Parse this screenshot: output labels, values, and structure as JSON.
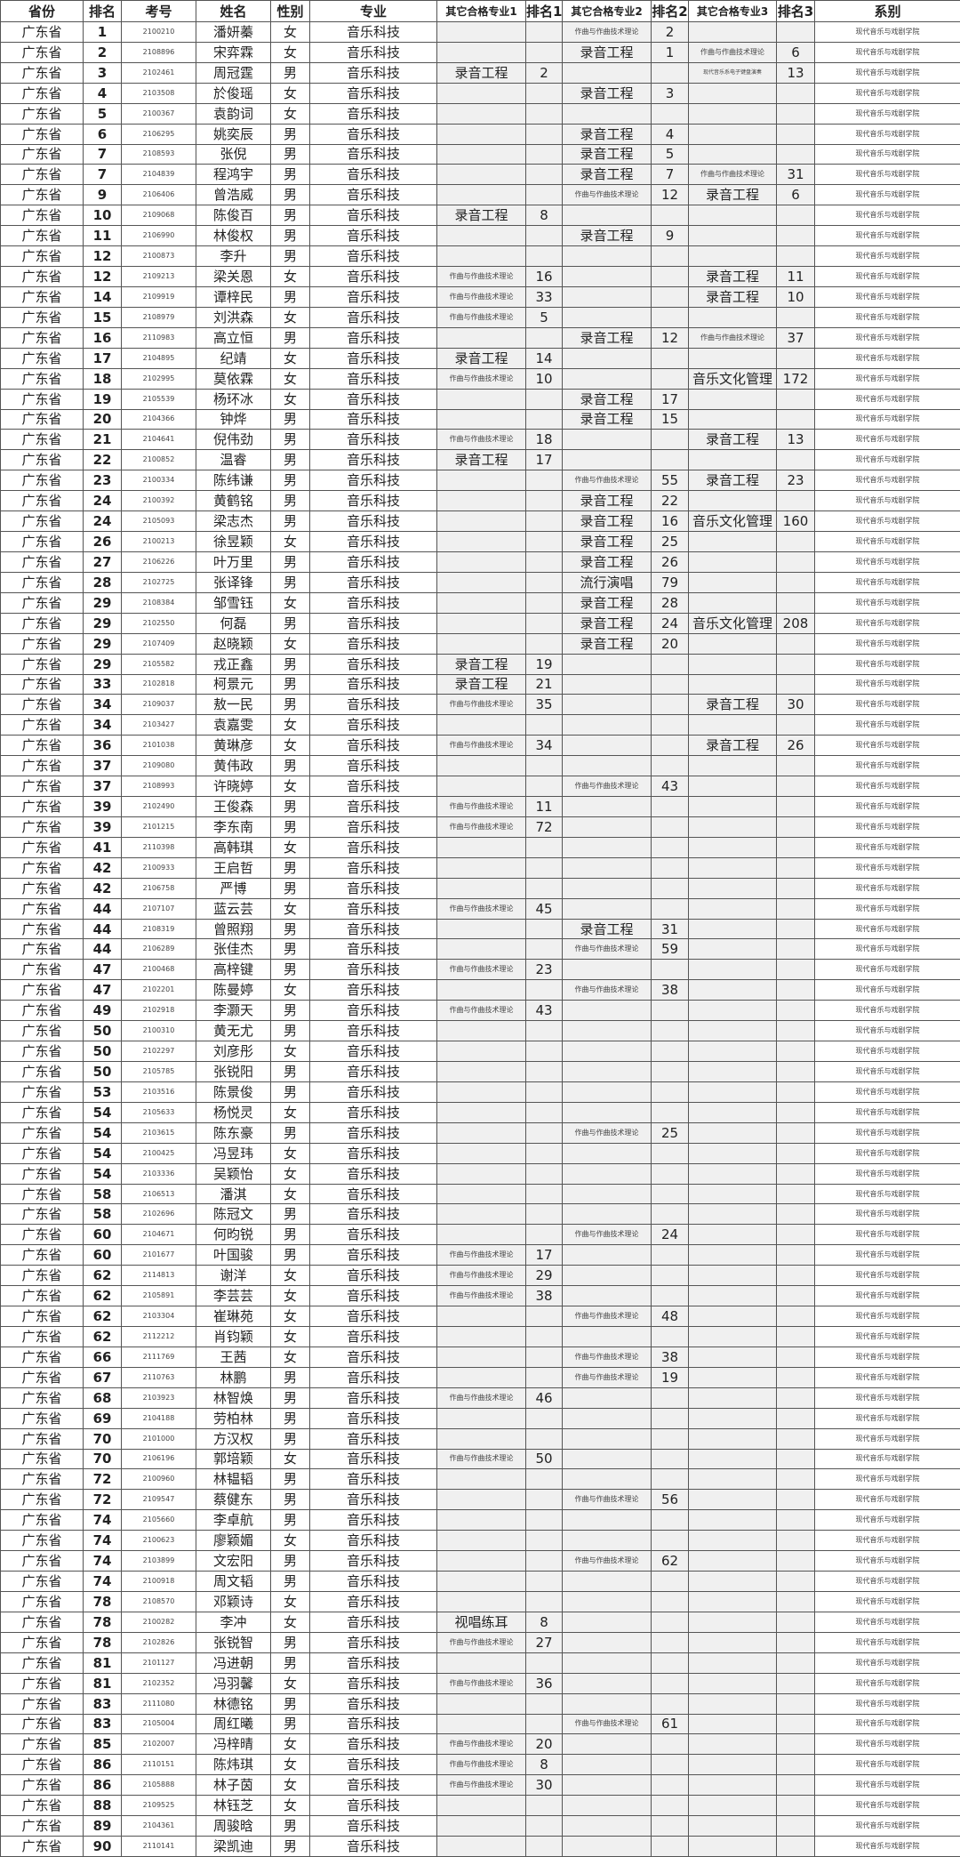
{
  "headers": [
    "省份",
    "排名",
    "考号",
    "姓名",
    "性别",
    "专业",
    "其它合格专业1",
    "排名1",
    "其它合格专业2",
    "排名2",
    "其它合格专业3",
    "排名3",
    "系别"
  ],
  "province": "广东省",
  "major": "音乐科技",
  "dept": "现代音乐与戏剧学院",
  "rows": [
    [
      "1",
      "2100210",
      "潘妍蓁",
      "女",
      "",
      "",
      "作曲与作曲技术理论",
      "2",
      "",
      ""
    ],
    [
      "2",
      "2108896",
      "宋弈霖",
      "女",
      "",
      "",
      "录音工程",
      "1",
      "作曲与作曲技术理论",
      "6"
    ],
    [
      "3",
      "2102461",
      "周冠霆",
      "男",
      "录音工程",
      "2",
      "",
      "",
      "现代音乐系电子键盘演奏",
      "13"
    ],
    [
      "4",
      "2103508",
      "於俊瑶",
      "女",
      "",
      "",
      "录音工程",
      "3",
      "",
      ""
    ],
    [
      "5",
      "2100367",
      "袁韵词",
      "女",
      "",
      "",
      "",
      "",
      "",
      ""
    ],
    [
      "6",
      "2106295",
      "姚奕辰",
      "男",
      "",
      "",
      "录音工程",
      "4",
      "",
      ""
    ],
    [
      "7",
      "2108593",
      "张倪",
      "男",
      "",
      "",
      "录音工程",
      "5",
      "",
      ""
    ],
    [
      "7",
      "2104839",
      "程鸿宇",
      "男",
      "",
      "",
      "录音工程",
      "7",
      "作曲与作曲技术理论",
      "31"
    ],
    [
      "9",
      "2106406",
      "曾浩威",
      "男",
      "",
      "",
      "作曲与作曲技术理论",
      "12",
      "录音工程",
      "6"
    ],
    [
      "10",
      "2109068",
      "陈俊百",
      "男",
      "录音工程",
      "8",
      "",
      "",
      "",
      ""
    ],
    [
      "11",
      "2106990",
      "林俊权",
      "男",
      "",
      "",
      "录音工程",
      "9",
      "",
      ""
    ],
    [
      "12",
      "2100873",
      "李升",
      "男",
      "",
      "",
      "",
      "",
      "",
      ""
    ],
    [
      "12",
      "2109213",
      "梁关恩",
      "女",
      "作曲与作曲技术理论",
      "16",
      "",
      "",
      "录音工程",
      "11"
    ],
    [
      "14",
      "2109919",
      "谭梓民",
      "男",
      "作曲与作曲技术理论",
      "33",
      "",
      "",
      "录音工程",
      "10"
    ],
    [
      "15",
      "2108979",
      "刘洪森",
      "女",
      "作曲与作曲技术理论",
      "5",
      "",
      "",
      "",
      ""
    ],
    [
      "16",
      "2110983",
      "高立恒",
      "男",
      "",
      "",
      "录音工程",
      "12",
      "作曲与作曲技术理论",
      "37"
    ],
    [
      "17",
      "2104895",
      "纪靖",
      "女",
      "录音工程",
      "14",
      "",
      "",
      "",
      ""
    ],
    [
      "18",
      "2102995",
      "莫依霖",
      "女",
      "作曲与作曲技术理论",
      "10",
      "",
      "",
      "音乐文化管理",
      "172"
    ],
    [
      "19",
      "2105539",
      "杨环冰",
      "女",
      "",
      "",
      "录音工程",
      "17",
      "",
      ""
    ],
    [
      "20",
      "2104366",
      "钟烨",
      "男",
      "",
      "",
      "录音工程",
      "15",
      "",
      ""
    ],
    [
      "21",
      "2104641",
      "倪伟劲",
      "男",
      "作曲与作曲技术理论",
      "18",
      "",
      "",
      "录音工程",
      "13"
    ],
    [
      "22",
      "2100852",
      "温睿",
      "男",
      "录音工程",
      "17",
      "",
      "",
      "",
      ""
    ],
    [
      "23",
      "2100334",
      "陈纬谦",
      "男",
      "",
      "",
      "作曲与作曲技术理论",
      "55",
      "录音工程",
      "23"
    ],
    [
      "24",
      "2100392",
      "黄鹤铭",
      "男",
      "",
      "",
      "录音工程",
      "22",
      "",
      ""
    ],
    [
      "24",
      "2105093",
      "梁志杰",
      "男",
      "",
      "",
      "录音工程",
      "16",
      "音乐文化管理",
      "160"
    ],
    [
      "26",
      "2100213",
      "徐昱颖",
      "女",
      "",
      "",
      "录音工程",
      "25",
      "",
      ""
    ],
    [
      "27",
      "2106226",
      "叶万里",
      "男",
      "",
      "",
      "录音工程",
      "26",
      "",
      ""
    ],
    [
      "28",
      "2102725",
      "张译锋",
      "男",
      "",
      "",
      "流行演唱",
      "79",
      "",
      ""
    ],
    [
      "29",
      "2108384",
      "邹雪钰",
      "女",
      "",
      "",
      "录音工程",
      "28",
      "",
      ""
    ],
    [
      "29",
      "2102550",
      "何磊",
      "男",
      "",
      "",
      "录音工程",
      "24",
      "音乐文化管理",
      "208"
    ],
    [
      "29",
      "2107409",
      "赵晓颖",
      "女",
      "",
      "",
      "录音工程",
      "20",
      "",
      ""
    ],
    [
      "29",
      "2105582",
      "戎正鑫",
      "男",
      "录音工程",
      "19",
      "",
      "",
      "",
      ""
    ],
    [
      "33",
      "2102818",
      "柯景元",
      "男",
      "录音工程",
      "21",
      "",
      "",
      "",
      ""
    ],
    [
      "34",
      "2109037",
      "敖一民",
      "男",
      "作曲与作曲技术理论",
      "35",
      "",
      "",
      "录音工程",
      "30"
    ],
    [
      "34",
      "2103427",
      "袁嘉雯",
      "女",
      "",
      "",
      "",
      "",
      "",
      ""
    ],
    [
      "36",
      "2101038",
      "黄琳彦",
      "女",
      "作曲与作曲技术理论",
      "34",
      "",
      "",
      "录音工程",
      "26"
    ],
    [
      "37",
      "2109080",
      "黄伟政",
      "男",
      "",
      "",
      "",
      "",
      "",
      ""
    ],
    [
      "37",
      "2108993",
      "许晓婷",
      "女",
      "",
      "",
      "作曲与作曲技术理论",
      "43",
      "",
      ""
    ],
    [
      "39",
      "2102490",
      "王俊森",
      "男",
      "作曲与作曲技术理论",
      "11",
      "",
      "",
      "",
      ""
    ],
    [
      "39",
      "2101215",
      "李东南",
      "男",
      "作曲与作曲技术理论",
      "72",
      "",
      "",
      "",
      ""
    ],
    [
      "41",
      "2110398",
      "高韩琪",
      "女",
      "",
      "",
      "",
      "",
      "",
      ""
    ],
    [
      "42",
      "2100933",
      "王启哲",
      "男",
      "",
      "",
      "",
      "",
      "",
      ""
    ],
    [
      "42",
      "2106758",
      "严博",
      "男",
      "",
      "",
      "",
      "",
      "",
      ""
    ],
    [
      "44",
      "2107107",
      "蓝云芸",
      "女",
      "作曲与作曲技术理论",
      "45",
      "",
      "",
      "",
      ""
    ],
    [
      "44",
      "2108319",
      "曾照翔",
      "男",
      "",
      "",
      "录音工程",
      "31",
      "",
      ""
    ],
    [
      "44",
      "2106289",
      "张佳杰",
      "男",
      "",
      "",
      "作曲与作曲技术理论",
      "59",
      "",
      ""
    ],
    [
      "47",
      "2100468",
      "高梓键",
      "男",
      "作曲与作曲技术理论",
      "23",
      "",
      "",
      "",
      ""
    ],
    [
      "47",
      "2102201",
      "陈曼婷",
      "女",
      "",
      "",
      "作曲与作曲技术理论",
      "38",
      "",
      ""
    ],
    [
      "49",
      "2102918",
      "李灏天",
      "男",
      "作曲与作曲技术理论",
      "43",
      "",
      "",
      "",
      ""
    ],
    [
      "50",
      "2100310",
      "黄无尤",
      "男",
      "",
      "",
      "",
      "",
      "",
      ""
    ],
    [
      "50",
      "2102297",
      "刘彦彤",
      "女",
      "",
      "",
      "",
      "",
      "",
      ""
    ],
    [
      "50",
      "2105785",
      "张锐阳",
      "男",
      "",
      "",
      "",
      "",
      "",
      ""
    ],
    [
      "53",
      "2103516",
      "陈景俊",
      "男",
      "",
      "",
      "",
      "",
      "",
      ""
    ],
    [
      "54",
      "2105633",
      "杨悦灵",
      "女",
      "",
      "",
      "",
      "",
      "",
      ""
    ],
    [
      "54",
      "2103615",
      "陈东豪",
      "男",
      "",
      "",
      "作曲与作曲技术理论",
      "25",
      "",
      ""
    ],
    [
      "54",
      "2100425",
      "冯昱玮",
      "女",
      "",
      "",
      "",
      "",
      "",
      ""
    ],
    [
      "54",
      "2103336",
      "吴颖怡",
      "女",
      "",
      "",
      "",
      "",
      "",
      ""
    ],
    [
      "58",
      "2106513",
      "潘淇",
      "女",
      "",
      "",
      "",
      "",
      "",
      ""
    ],
    [
      "58",
      "2102696",
      "陈冠文",
      "男",
      "",
      "",
      "",
      "",
      "",
      ""
    ],
    [
      "60",
      "2104671",
      "何昀锐",
      "男",
      "",
      "",
      "作曲与作曲技术理论",
      "24",
      "",
      ""
    ],
    [
      "60",
      "2101677",
      "叶国骏",
      "男",
      "作曲与作曲技术理论",
      "17",
      "",
      "",
      "",
      ""
    ],
    [
      "62",
      "2114813",
      "谢洋",
      "女",
      "作曲与作曲技术理论",
      "29",
      "",
      "",
      "",
      ""
    ],
    [
      "62",
      "2105891",
      "李芸芸",
      "女",
      "作曲与作曲技术理论",
      "38",
      "",
      "",
      "",
      ""
    ],
    [
      "62",
      "2103304",
      "崔琳苑",
      "女",
      "",
      "",
      "作曲与作曲技术理论",
      "48",
      "",
      ""
    ],
    [
      "62",
      "2112212",
      "肖钧颖",
      "女",
      "",
      "",
      "",
      "",
      "",
      ""
    ],
    [
      "66",
      "2111769",
      "王茜",
      "女",
      "",
      "",
      "作曲与作曲技术理论",
      "38",
      "",
      ""
    ],
    [
      "67",
      "2110763",
      "林鹏",
      "男",
      "",
      "",
      "作曲与作曲技术理论",
      "19",
      "",
      ""
    ],
    [
      "68",
      "2103923",
      "林智焕",
      "男",
      "作曲与作曲技术理论",
      "46",
      "",
      "",
      "",
      ""
    ],
    [
      "69",
      "2104188",
      "劳柏林",
      "男",
      "",
      "",
      "",
      "",
      "",
      ""
    ],
    [
      "70",
      "2101000",
      "方汉权",
      "男",
      "",
      "",
      "",
      "",
      "",
      ""
    ],
    [
      "70",
      "2106196",
      "郭培颖",
      "女",
      "作曲与作曲技术理论",
      "50",
      "",
      "",
      "",
      ""
    ],
    [
      "72",
      "2100960",
      "林韫韬",
      "男",
      "",
      "",
      "",
      "",
      "",
      ""
    ],
    [
      "72",
      "2109547",
      "蔡健东",
      "男",
      "",
      "",
      "作曲与作曲技术理论",
      "56",
      "",
      ""
    ],
    [
      "74",
      "2105660",
      "李卓航",
      "男",
      "",
      "",
      "",
      "",
      "",
      ""
    ],
    [
      "74",
      "2100623",
      "廖颖媚",
      "女",
      "",
      "",
      "",
      "",
      "",
      ""
    ],
    [
      "74",
      "2103899",
      "文宏阳",
      "男",
      "",
      "",
      "作曲与作曲技术理论",
      "62",
      "",
      ""
    ],
    [
      "74",
      "2100918",
      "周文韬",
      "男",
      "",
      "",
      "",
      "",
      "",
      ""
    ],
    [
      "78",
      "2108570",
      "邓颖诗",
      "女",
      "",
      "",
      "",
      "",
      "",
      ""
    ],
    [
      "78",
      "2100282",
      "李冲",
      "女",
      "视唱练耳",
      "8",
      "",
      "",
      "",
      ""
    ],
    [
      "78",
      "2102826",
      "张锐智",
      "男",
      "作曲与作曲技术理论",
      "27",
      "",
      "",
      "",
      ""
    ],
    [
      "81",
      "2101127",
      "冯进朝",
      "男",
      "",
      "",
      "",
      "",
      "",
      ""
    ],
    [
      "81",
      "2102352",
      "冯羽馨",
      "女",
      "作曲与作曲技术理论",
      "36",
      "",
      "",
      "",
      ""
    ],
    [
      "83",
      "2111080",
      "林德铭",
      "男",
      "",
      "",
      "",
      "",
      "",
      ""
    ],
    [
      "83",
      "2105004",
      "周红曦",
      "男",
      "",
      "",
      "作曲与作曲技术理论",
      "61",
      "",
      ""
    ],
    [
      "85",
      "2102007",
      "冯梓晴",
      "女",
      "作曲与作曲技术理论",
      "20",
      "",
      "",
      "",
      ""
    ],
    [
      "86",
      "2110151",
      "陈炜琪",
      "女",
      "作曲与作曲技术理论",
      "8",
      "",
      "",
      "",
      ""
    ],
    [
      "86",
      "2105888",
      "林子茵",
      "女",
      "作曲与作曲技术理论",
      "30",
      "",
      "",
      "",
      ""
    ],
    [
      "88",
      "2109525",
      "林钰芝",
      "女",
      "",
      "",
      "",
      "",
      "",
      ""
    ],
    [
      "89",
      "2104361",
      "周骏晗",
      "男",
      "",
      "",
      "",
      "",
      "",
      ""
    ],
    [
      "90",
      "2110141",
      "梁凯迪",
      "男",
      "",
      "",
      "",
      "",
      "",
      ""
    ]
  ]
}
